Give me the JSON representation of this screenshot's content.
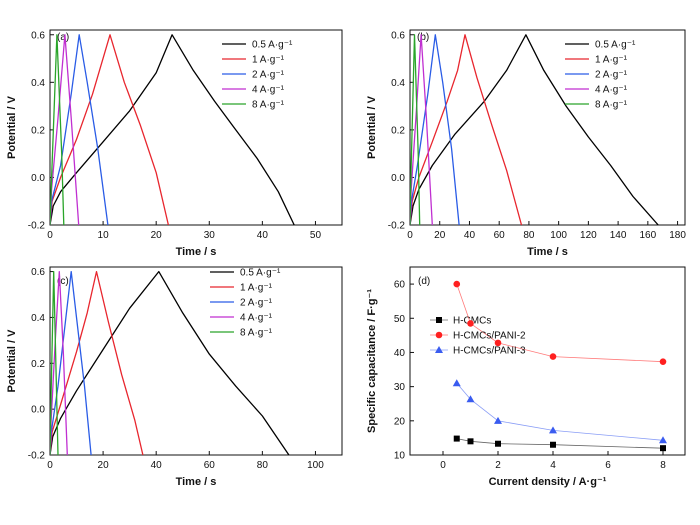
{
  "chart_data": [
    {
      "type": "line",
      "panel_label": "(a)",
      "xlabel": "Time / s",
      "ylabel": "Potential / V",
      "xlim": [
        0,
        55
      ],
      "ylim": [
        -0.2,
        0.62
      ],
      "xticks": [
        0,
        10,
        20,
        30,
        40,
        50
      ],
      "yticks": [
        -0.2,
        0.0,
        0.2,
        0.4,
        0.6
      ],
      "ytick_labels": [
        "-0.2",
        "0.0",
        "0.2",
        "0.4",
        "0.6"
      ],
      "legend_position": "top-right",
      "series": [
        {
          "name": "0.5 A·g⁻¹",
          "color": "#000000",
          "curve": [
            [
              0,
              -0.2
            ],
            [
              0.6,
              -0.12
            ],
            [
              2,
              -0.06
            ],
            [
              5,
              0.02
            ],
            [
              10,
              0.15
            ],
            [
              15,
              0.28
            ],
            [
              20,
              0.44
            ],
            [
              23,
              0.6
            ],
            [
              27,
              0.45
            ],
            [
              31,
              0.32
            ],
            [
              35,
              0.2
            ],
            [
              39,
              0.08
            ],
            [
              43,
              -0.06
            ],
            [
              46,
              -0.2
            ]
          ]
        },
        {
          "name": "1 A·g⁻¹",
          "color": "#e8262e",
          "curve": [
            [
              0,
              -0.2
            ],
            [
              0.4,
              -0.1
            ],
            [
              2,
              0.0
            ],
            [
              5,
              0.16
            ],
            [
              8,
              0.35
            ],
            [
              11.3,
              0.6
            ],
            [
              14,
              0.4
            ],
            [
              17,
              0.22
            ],
            [
              20,
              0.02
            ],
            [
              22.3,
              -0.2
            ]
          ]
        },
        {
          "name": "2 A·g⁻¹",
          "color": "#2a5ce6",
          "curve": [
            [
              0,
              -0.2
            ],
            [
              0.3,
              -0.1
            ],
            [
              2,
              0.05
            ],
            [
              4,
              0.35
            ],
            [
              5.5,
              0.6
            ],
            [
              7,
              0.4
            ],
            [
              9,
              0.12
            ],
            [
              10.9,
              -0.2
            ]
          ]
        },
        {
          "name": "4 A·g⁻¹",
          "color": "#c02fd1",
          "curve": [
            [
              0,
              -0.2
            ],
            [
              0.3,
              -0.05
            ],
            [
              1.5,
              0.25
            ],
            [
              2.8,
              0.6
            ],
            [
              4,
              0.25
            ],
            [
              5.4,
              -0.2
            ]
          ]
        },
        {
          "name": "8 A·g⁻¹",
          "color": "#2aa52a",
          "curve": [
            [
              0,
              -0.2
            ],
            [
              0.3,
              0.0
            ],
            [
              1.3,
              0.6
            ],
            [
              2.2,
              0.1
            ],
            [
              2.6,
              -0.2
            ]
          ]
        }
      ]
    },
    {
      "type": "line",
      "panel_label": "(b)",
      "xlabel": "Time / s",
      "ylabel": "Potential / V",
      "xlim": [
        0,
        185
      ],
      "ylim": [
        -0.2,
        0.62
      ],
      "xticks": [
        0,
        20,
        40,
        60,
        80,
        100,
        120,
        140,
        160,
        180
      ],
      "yticks": [
        -0.2,
        0.0,
        0.2,
        0.4,
        0.6
      ],
      "ytick_labels": [
        "-0.2",
        "0.0",
        "0.2",
        "0.4",
        "0.6"
      ],
      "legend_position": "top-right",
      "series": [
        {
          "name": "0.5 A·g⁻¹",
          "color": "#000000",
          "curve": [
            [
              0,
              -0.2
            ],
            [
              2,
              -0.12
            ],
            [
              6,
              -0.05
            ],
            [
              15,
              0.05
            ],
            [
              30,
              0.18
            ],
            [
              50,
              0.32
            ],
            [
              65,
              0.45
            ],
            [
              78,
              0.6
            ],
            [
              90,
              0.45
            ],
            [
              105,
              0.3
            ],
            [
              120,
              0.17
            ],
            [
              135,
              0.05
            ],
            [
              150,
              -0.08
            ],
            [
              167,
              -0.2
            ]
          ]
        },
        {
          "name": "1 A·g⁻¹",
          "color": "#e8262e",
          "curve": [
            [
              0,
              -0.2
            ],
            [
              1.5,
              -0.1
            ],
            [
              6,
              0.0
            ],
            [
              15,
              0.15
            ],
            [
              25,
              0.32
            ],
            [
              32,
              0.45
            ],
            [
              37,
              0.6
            ],
            [
              45,
              0.42
            ],
            [
              55,
              0.22
            ],
            [
              65,
              0.03
            ],
            [
              75,
              -0.2
            ]
          ]
        },
        {
          "name": "2 A·g⁻¹",
          "color": "#2a5ce6",
          "curve": [
            [
              0,
              -0.2
            ],
            [
              1,
              -0.1
            ],
            [
              5,
              0.05
            ],
            [
              12,
              0.35
            ],
            [
              17,
              0.6
            ],
            [
              22,
              0.4
            ],
            [
              28,
              0.12
            ],
            [
              33,
              -0.2
            ]
          ]
        },
        {
          "name": "4 A·g⁻¹",
          "color": "#c02fd1",
          "curve": [
            [
              0,
              -0.2
            ],
            [
              0.8,
              -0.05
            ],
            [
              4,
              0.25
            ],
            [
              7.5,
              0.6
            ],
            [
              11,
              0.25
            ],
            [
              15,
              -0.2
            ]
          ]
        },
        {
          "name": "8 A·g⁻¹",
          "color": "#2aa52a",
          "curve": [
            [
              0,
              -0.2
            ],
            [
              0.6,
              0.0
            ],
            [
              3,
              0.6
            ],
            [
              5.5,
              0.1
            ],
            [
              6.5,
              -0.2
            ]
          ]
        }
      ]
    },
    {
      "type": "line",
      "panel_label": "(c)",
      "xlabel": "Time / s",
      "ylabel": "Potential / V",
      "xlim": [
        0,
        110
      ],
      "ylim": [
        -0.2,
        0.62
      ],
      "xticks": [
        0,
        20,
        40,
        60,
        80,
        100
      ],
      "yticks": [
        -0.2,
        0.0,
        0.2,
        0.4,
        0.6
      ],
      "ytick_labels": [
        "-0.2",
        "0.0",
        "0.2",
        "0.4",
        "0.6"
      ],
      "legend_position": "top-right",
      "series": [
        {
          "name": "0.5 A·g⁻¹",
          "color": "#000000",
          "curve": [
            [
              0,
              -0.2
            ],
            [
              1,
              -0.12
            ],
            [
              4,
              -0.04
            ],
            [
              10,
              0.08
            ],
            [
              20,
              0.26
            ],
            [
              30,
              0.44
            ],
            [
              41,
              0.6
            ],
            [
              50,
              0.42
            ],
            [
              60,
              0.24
            ],
            [
              70,
              0.1
            ],
            [
              80,
              -0.03
            ],
            [
              90,
              -0.2
            ]
          ]
        },
        {
          "name": "1 A·g⁻¹",
          "color": "#e8262e",
          "curve": [
            [
              0,
              -0.2
            ],
            [
              0.8,
              -0.1
            ],
            [
              4,
              0.02
            ],
            [
              10,
              0.25
            ],
            [
              14,
              0.42
            ],
            [
              17.5,
              0.6
            ],
            [
              22,
              0.38
            ],
            [
              27,
              0.15
            ],
            [
              32,
              -0.05
            ],
            [
              35,
              -0.2
            ]
          ]
        },
        {
          "name": "2 A·g⁻¹",
          "color": "#2a5ce6",
          "curve": [
            [
              0,
              -0.2
            ],
            [
              0.5,
              -0.1
            ],
            [
              3,
              0.1
            ],
            [
              6,
              0.4
            ],
            [
              8,
              0.6
            ],
            [
              10,
              0.4
            ],
            [
              13,
              0.1
            ],
            [
              15.5,
              -0.2
            ]
          ]
        },
        {
          "name": "4 A·g⁻¹",
          "color": "#c02fd1",
          "curve": [
            [
              0,
              -0.2
            ],
            [
              0.4,
              -0.05
            ],
            [
              2,
              0.3
            ],
            [
              3.5,
              0.6
            ],
            [
              5,
              0.25
            ],
            [
              6.5,
              -0.2
            ]
          ]
        },
        {
          "name": "8 A·g⁻¹",
          "color": "#2aa52a",
          "curve": [
            [
              0,
              -0.2
            ],
            [
              0.3,
              0.0
            ],
            [
              1.4,
              0.6
            ],
            [
              2.4,
              0.1
            ],
            [
              3,
              -0.2
            ]
          ]
        }
      ]
    },
    {
      "type": "line",
      "panel_label": "(d)",
      "xlabel": "Current density / A·g⁻¹",
      "ylabel": "Specific capacitance / F·g⁻¹",
      "xlim": [
        -1.2,
        8.8
      ],
      "ylim": [
        10,
        65
      ],
      "xticks": [
        0,
        2,
        4,
        6,
        8
      ],
      "yticks": [
        10,
        20,
        30,
        40,
        50,
        60
      ],
      "legend_position": "top-left",
      "series": [
        {
          "name": "H-CMCs",
          "color": "#000000",
          "marker": "square",
          "x": [
            0.5,
            1,
            2,
            4,
            8
          ],
          "y": [
            14.8,
            14.0,
            13.3,
            13.0,
            12.0
          ]
        },
        {
          "name": "H-CMCs/PANI-2",
          "color": "#ff2020",
          "marker": "circle",
          "x": [
            0.5,
            1,
            2,
            4,
            8
          ],
          "y": [
            60.0,
            48.5,
            42.8,
            38.8,
            37.3
          ]
        },
        {
          "name": "H-CMCs/PANI-3",
          "color": "#3a5cf0",
          "marker": "triangle",
          "x": [
            0.5,
            1,
            2,
            4,
            8
          ],
          "y": [
            31.0,
            26.3,
            20.0,
            17.2,
            14.3
          ]
        }
      ]
    }
  ]
}
